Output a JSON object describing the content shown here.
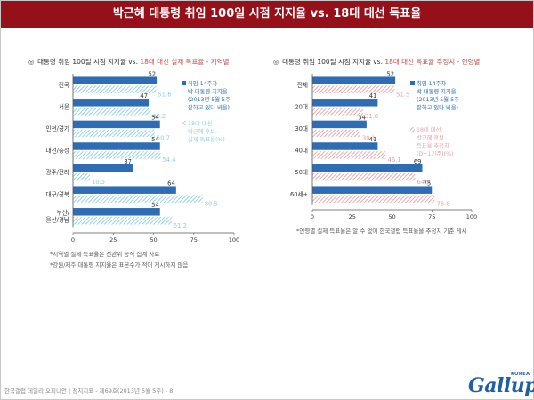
{
  "page": {
    "title": "박근혜 대통령 취임 100일 시점 지지율 vs. 18대 대선 득표율",
    "footer": "한국갤럽 데일리 오피니언 | 정치지표 - 제69호(2013년 5월 5주) - 8",
    "logo_text": "Gallup",
    "logo_sub": "KOREA",
    "colors": {
      "header": "#96101a",
      "approval": "#2e6db4",
      "votes_left": "#8ecfe0",
      "votes_right": "#e8a3a6",
      "title_highlight": "#c0504d"
    }
  },
  "left_chart": {
    "title_mark": "◎",
    "title_main": "대통령 취임 100일 시점 지지율 vs. ",
    "title_highlight": "18대 대선 실제 득표율 - 지역별",
    "notes": [
      "*지역별 실제 득표율은 선관위 공식 집계 자료",
      "*강원/제주·대통령 지지율은 표본수가 적어 게시하지 않음"
    ]
  },
  "right_chart": {
    "title_mark": "◎",
    "title_main": "대통령 취임 100일 시점 지지율 vs. ",
    "title_highlight": "18대 대선 득표율 추정치 - 연령별",
    "notes": [
      "*연령별 실제 득표율은 알 수 없어 한국갤럽 득표율을 추정치 기준 게시"
    ]
  },
  "chart_data": [
    {
      "type": "bar",
      "orientation": "horizontal",
      "categories": [
        "전국",
        "서울",
        "인천/경기",
        "대전/충청",
        "광주/전라",
        "대구/경북",
        "부산/\n울산/경남"
      ],
      "series": [
        {
          "name": "취임 14주차\n박 대통령 지지율\n(2013년 5월 5주\n잘하고 있다 비율)",
          "values": [
            52,
            47,
            54,
            54,
            37,
            64,
            54
          ],
          "color": "#2e6db4",
          "style": "solid"
        },
        {
          "name": "18대 대선\n박근혜 후보\n실제 득표율(%)",
          "values": [
            51.6,
            48.2,
            50.7,
            54.4,
            10.5,
            80.5,
            61.2
          ],
          "color": "#8ecfe0",
          "style": "hatched"
        }
      ],
      "xlim": [
        0,
        100
      ],
      "xticks": [
        "0",
        "25",
        "50",
        "75",
        "100"
      ],
      "grid": false,
      "legend_position": "right"
    },
    {
      "type": "bar",
      "orientation": "horizontal",
      "categories": [
        "전체",
        "20대",
        "30대",
        "40대",
        "50대",
        "60세+"
      ],
      "series": [
        {
          "name": "취임 14주차\n박 대통령 지지율\n(2013년 5월 5주\n잘하고 있다 비율)",
          "values": [
            52,
            41,
            34,
            41,
            69,
            75
          ],
          "color": "#2e6db4",
          "style": "solid"
        },
        {
          "name": "18대 대선\n박근혜 후보\n득표율 추정치\n(D+1기준)(%)",
          "values": [
            51.5,
            31.8,
            30.1,
            46.1,
            64.5,
            76.8
          ],
          "color": "#e8a3a6",
          "style": "hatched"
        }
      ],
      "xlim": [
        0,
        100
      ],
      "xticks": [
        "0",
        "25",
        "50",
        "75",
        "100"
      ],
      "grid": false,
      "legend_position": "right"
    }
  ]
}
